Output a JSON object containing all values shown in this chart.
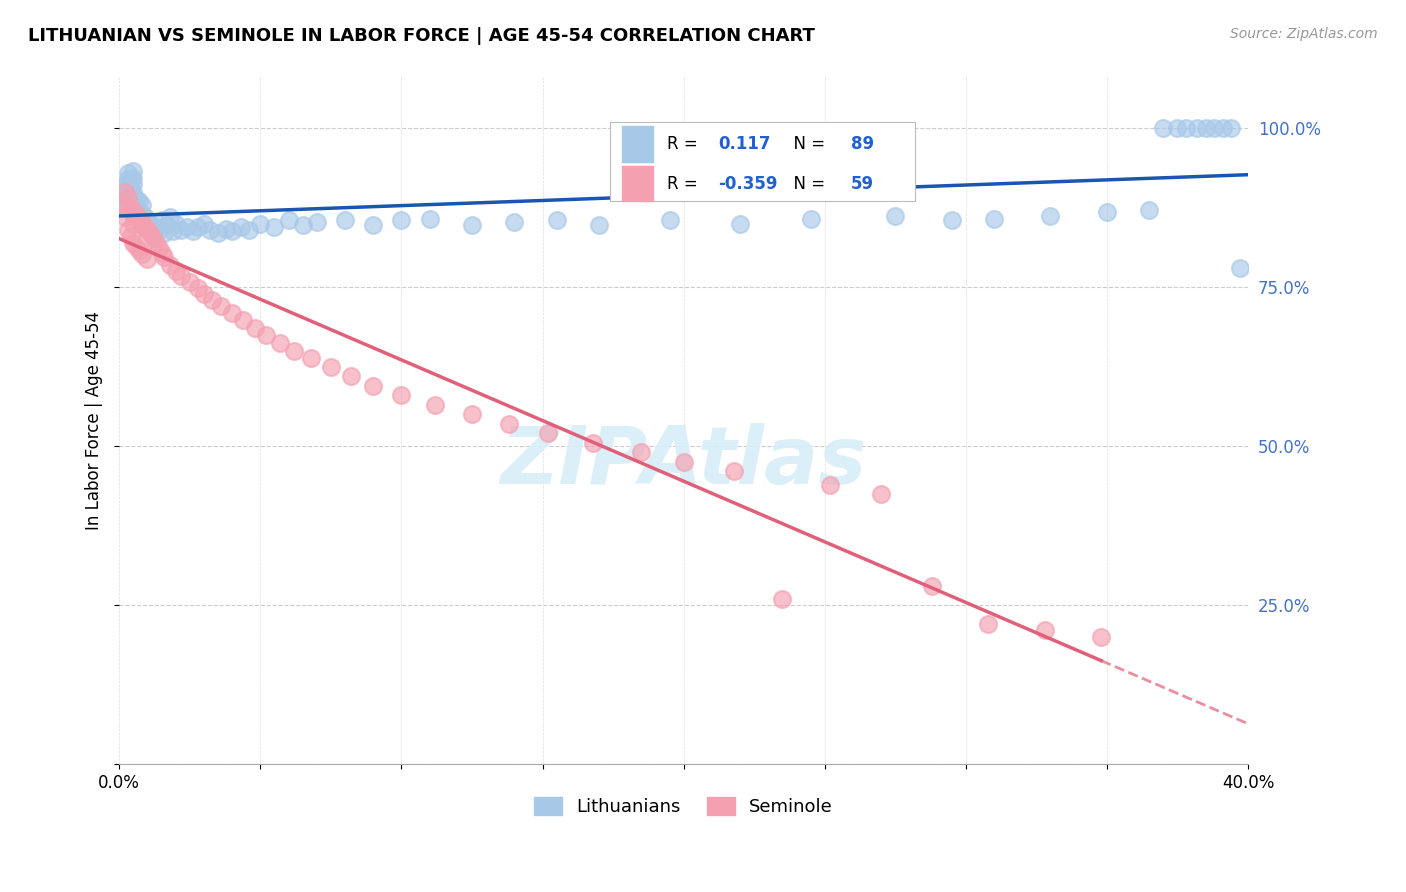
{
  "title": "LITHUANIAN VS SEMINOLE IN LABOR FORCE | AGE 45-54 CORRELATION CHART",
  "source": "Source: ZipAtlas.com",
  "ylabel": "In Labor Force | Age 45-54",
  "xlim": [
    0.0,
    0.4
  ],
  "ylim": [
    0.0,
    1.08
  ],
  "legend_R_blue": "0.117",
  "legend_N_blue": "89",
  "legend_R_pink": "-0.359",
  "legend_N_pink": "59",
  "blue_color": "#a8c8e8",
  "pink_color": "#f4a0b0",
  "trend_blue": "#1a56b0",
  "trend_pink": "#e0607a",
  "watermark_color": "#d8eef8",
  "blue_scatter_x": [
    0.001,
    0.001,
    0.002,
    0.002,
    0.002,
    0.003,
    0.003,
    0.003,
    0.003,
    0.003,
    0.003,
    0.004,
    0.004,
    0.004,
    0.004,
    0.004,
    0.005,
    0.005,
    0.005,
    0.005,
    0.005,
    0.005,
    0.005,
    0.006,
    0.006,
    0.006,
    0.007,
    0.007,
    0.007,
    0.008,
    0.008,
    0.008,
    0.009,
    0.009,
    0.01,
    0.01,
    0.011,
    0.011,
    0.012,
    0.013,
    0.014,
    0.015,
    0.016,
    0.017,
    0.018,
    0.019,
    0.02,
    0.022,
    0.024,
    0.026,
    0.028,
    0.03,
    0.032,
    0.035,
    0.038,
    0.04,
    0.043,
    0.046,
    0.05,
    0.055,
    0.06,
    0.065,
    0.07,
    0.08,
    0.09,
    0.1,
    0.11,
    0.125,
    0.14,
    0.155,
    0.17,
    0.195,
    0.22,
    0.245,
    0.275,
    0.295,
    0.31,
    0.33,
    0.35,
    0.365,
    0.37,
    0.375,
    0.378,
    0.382,
    0.385,
    0.388,
    0.391,
    0.394,
    0.397
  ],
  "blue_scatter_y": [
    0.885,
    0.9,
    0.88,
    0.895,
    0.91,
    0.875,
    0.888,
    0.9,
    0.912,
    0.92,
    0.93,
    0.87,
    0.885,
    0.895,
    0.905,
    0.918,
    0.865,
    0.878,
    0.89,
    0.9,
    0.912,
    0.922,
    0.932,
    0.86,
    0.875,
    0.888,
    0.855,
    0.87,
    0.885,
    0.85,
    0.865,
    0.88,
    0.845,
    0.86,
    0.84,
    0.855,
    0.835,
    0.85,
    0.83,
    0.845,
    0.84,
    0.855,
    0.835,
    0.848,
    0.86,
    0.838,
    0.85,
    0.84,
    0.845,
    0.838,
    0.845,
    0.85,
    0.84,
    0.835,
    0.842,
    0.838,
    0.845,
    0.84,
    0.85,
    0.845,
    0.855,
    0.848,
    0.852,
    0.855,
    0.848,
    0.855,
    0.858,
    0.848,
    0.852,
    0.855,
    0.848,
    0.855,
    0.85,
    0.858,
    0.862,
    0.855,
    0.858,
    0.862,
    0.868,
    0.872,
    1.0,
    1.0,
    1.0,
    1.0,
    1.0,
    1.0,
    1.0,
    1.0,
    0.78
  ],
  "pink_scatter_x": [
    0.001,
    0.002,
    0.002,
    0.003,
    0.003,
    0.004,
    0.004,
    0.005,
    0.005,
    0.005,
    0.006,
    0.006,
    0.007,
    0.007,
    0.008,
    0.008,
    0.009,
    0.01,
    0.01,
    0.011,
    0.012,
    0.013,
    0.014,
    0.015,
    0.016,
    0.018,
    0.02,
    0.022,
    0.025,
    0.028,
    0.03,
    0.033,
    0.036,
    0.04,
    0.044,
    0.048,
    0.052,
    0.057,
    0.062,
    0.068,
    0.075,
    0.082,
    0.09,
    0.1,
    0.112,
    0.125,
    0.138,
    0.152,
    0.168,
    0.185,
    0.2,
    0.218,
    0.235,
    0.252,
    0.27,
    0.288,
    0.308,
    0.328,
    0.348
  ],
  "pink_scatter_y": [
    0.88,
    0.9,
    0.86,
    0.89,
    0.84,
    0.875,
    0.83,
    0.87,
    0.85,
    0.82,
    0.865,
    0.815,
    0.858,
    0.808,
    0.852,
    0.802,
    0.845,
    0.84,
    0.795,
    0.835,
    0.828,
    0.82,
    0.812,
    0.804,
    0.798,
    0.785,
    0.775,
    0.768,
    0.758,
    0.748,
    0.74,
    0.73,
    0.72,
    0.71,
    0.698,
    0.686,
    0.675,
    0.662,
    0.65,
    0.638,
    0.624,
    0.61,
    0.595,
    0.58,
    0.565,
    0.55,
    0.535,
    0.52,
    0.505,
    0.49,
    0.475,
    0.46,
    0.26,
    0.438,
    0.425,
    0.28,
    0.22,
    0.21,
    0.2
  ],
  "yticks": [
    0.0,
    0.25,
    0.5,
    0.75,
    1.0
  ],
  "ytick_labels": [
    "",
    "25.0%",
    "50.0%",
    "75.0%",
    "100.0%"
  ],
  "xticks": [
    0.0,
    0.05,
    0.1,
    0.15,
    0.2,
    0.25,
    0.3,
    0.35,
    0.4
  ],
  "xtick_labels": [
    "0.0%",
    "",
    "",
    "",
    "",
    "",
    "",
    "",
    "40.0%"
  ]
}
